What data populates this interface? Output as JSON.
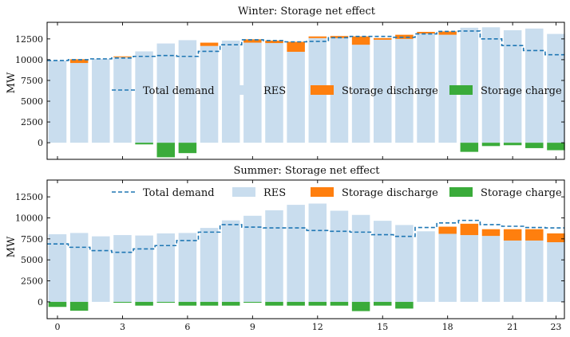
{
  "chart_data": [
    {
      "type": "bar",
      "title": "Winter: Storage net effect",
      "xlabel": "",
      "ylabel": "MW",
      "ylim": [
        -2000,
        14500
      ],
      "yticks": [
        0,
        2500,
        5000,
        7500,
        10000,
        12500
      ],
      "show_x_tick_labels": false,
      "categories": [
        0,
        1,
        2,
        3,
        4,
        5,
        6,
        7,
        8,
        9,
        10,
        11,
        12,
        13,
        14,
        15,
        16,
        17,
        18,
        19,
        20,
        21,
        22,
        23
      ],
      "series": [
        {
          "name": "Total demand",
          "kind": "step",
          "color": "#1f77b4",
          "values": [
            9900,
            10000,
            10100,
            10200,
            10400,
            10500,
            10400,
            11000,
            11800,
            12400,
            12300,
            12150,
            12200,
            12650,
            12800,
            12800,
            12700,
            13100,
            13400,
            13450,
            12500,
            11700,
            11100,
            10600
          ]
        },
        {
          "name": "RES",
          "kind": "bar",
          "color": "#c9ddee",
          "values": [
            9900,
            9600,
            10100,
            10300,
            11000,
            11950,
            12350,
            11650,
            12300,
            12050,
            12000,
            10950,
            12600,
            12600,
            11800,
            12400,
            12500,
            13150,
            13000,
            13850,
            13900,
            13550,
            13750,
            13100
          ]
        },
        {
          "name": "Storage discharge",
          "kind": "bar-stack",
          "color": "#ff7f0e",
          "values": [
            0,
            450,
            0,
            100,
            0,
            0,
            0,
            400,
            0,
            400,
            300,
            1200,
            200,
            250,
            1000,
            200,
            500,
            200,
            400,
            0,
            0,
            0,
            0,
            0
          ]
        },
        {
          "name": "Storage charge",
          "kind": "bar-below",
          "color": "#3aab3a",
          "values": [
            0,
            0,
            0,
            0,
            200,
            1750,
            1250,
            0,
            0,
            0,
            0,
            0,
            0,
            0,
            0,
            0,
            0,
            0,
            0,
            1100,
            400,
            300,
            650,
            900
          ]
        }
      ],
      "legend": {
        "placement": "center",
        "entries": [
          "Total demand",
          "RES",
          "Storage discharge",
          "Storage charge"
        ]
      }
    },
    {
      "type": "bar",
      "title": "Summer: Storage net effect",
      "xlabel": "",
      "ylabel": "MW",
      "ylim": [
        -2000,
        14500
      ],
      "yticks": [
        0,
        2500,
        5000,
        7500,
        10000,
        12500
      ],
      "show_x_tick_labels": true,
      "xticks": [
        0,
        3,
        6,
        9,
        12,
        15,
        18,
        21,
        23
      ],
      "categories": [
        0,
        1,
        2,
        3,
        4,
        5,
        6,
        7,
        8,
        9,
        10,
        11,
        12,
        13,
        14,
        15,
        16,
        17,
        18,
        19,
        20,
        21,
        22,
        23
      ],
      "series": [
        {
          "name": "Total demand",
          "kind": "step",
          "color": "#1f77b4",
          "values": [
            6900,
            6500,
            6100,
            5900,
            6300,
            6700,
            7300,
            8300,
            9200,
            8900,
            8800,
            8800,
            8500,
            8400,
            8300,
            8000,
            7800,
            8850,
            9400,
            9700,
            9200,
            9000,
            8850,
            8800
          ]
        },
        {
          "name": "RES",
          "kind": "bar",
          "color": "#c9ddee",
          "values": [
            8050,
            8200,
            7800,
            7950,
            7900,
            8150,
            8200,
            8800,
            9700,
            10250,
            10900,
            11550,
            11700,
            10850,
            10350,
            9650,
            9150,
            8400,
            8100,
            7950,
            7850,
            7300,
            7300,
            7100
          ]
        },
        {
          "name": "Storage discharge",
          "kind": "bar-stack",
          "color": "#ff7f0e",
          "values": [
            0,
            0,
            0,
            0,
            0,
            0,
            0,
            0,
            0,
            0,
            0,
            0,
            0,
            0,
            0,
            0,
            0,
            0,
            850,
            1350,
            800,
            1350,
            1350,
            1050
          ]
        },
        {
          "name": "Storage charge",
          "kind": "bar-below",
          "color": "#3aab3a",
          "values": [
            600,
            1050,
            0,
            100,
            450,
            100,
            450,
            450,
            450,
            100,
            450,
            450,
            450,
            450,
            1100,
            450,
            800,
            0,
            0,
            0,
            0,
            0,
            0,
            0
          ]
        }
      ],
      "legend": {
        "placement": "top",
        "entries": [
          "Total demand",
          "RES",
          "Storage discharge",
          "Storage charge"
        ]
      }
    }
  ]
}
